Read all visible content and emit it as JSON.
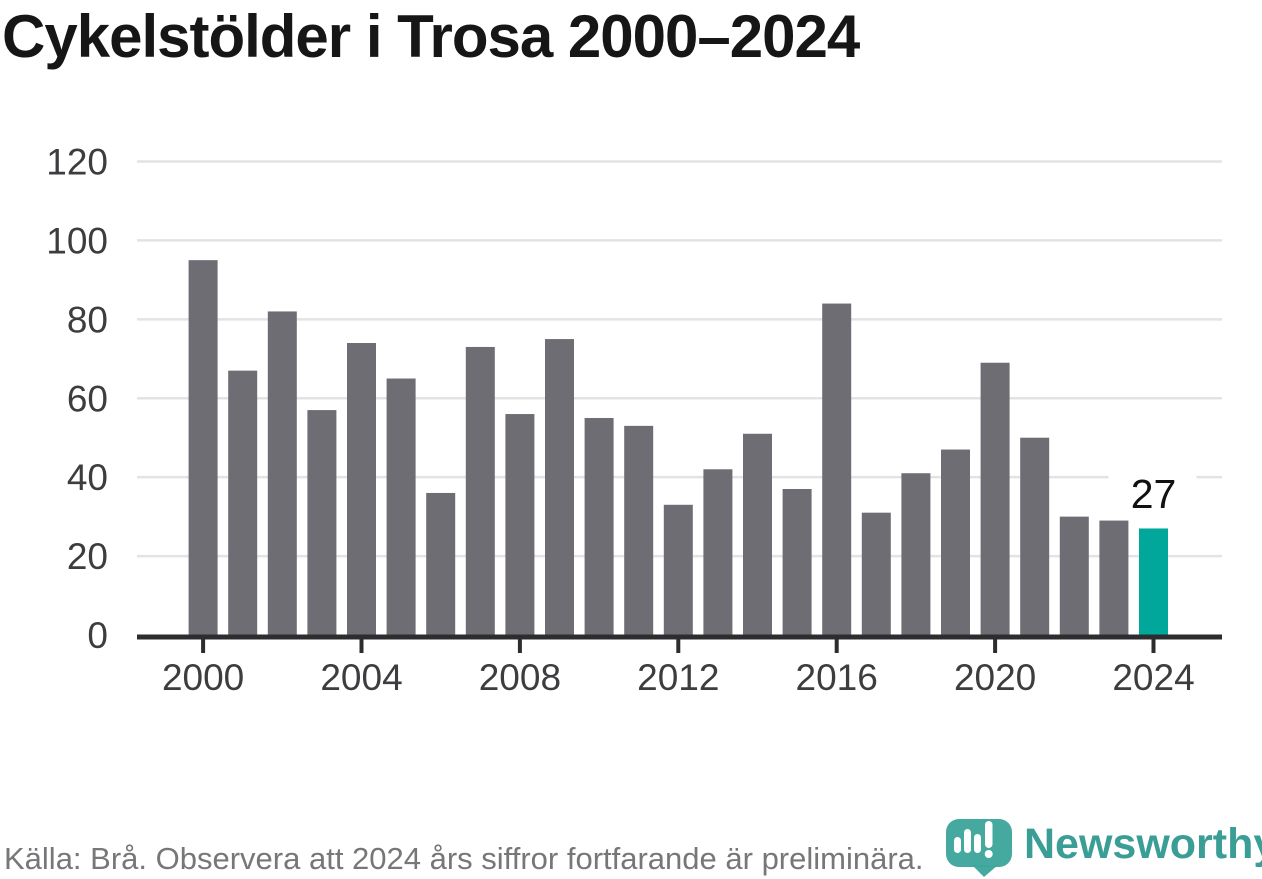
{
  "title": "Cykelstölder i Trosa 2000–2024",
  "chart_data": {
    "type": "bar",
    "title": "Cykelstölder i Trosa 2000–2024",
    "xlabel": "",
    "ylabel": "",
    "x": [
      2000,
      2001,
      2002,
      2003,
      2004,
      2005,
      2006,
      2007,
      2008,
      2009,
      2010,
      2011,
      2012,
      2013,
      2014,
      2015,
      2016,
      2017,
      2018,
      2019,
      2020,
      2021,
      2022,
      2023,
      2024
    ],
    "values": [
      95,
      67,
      82,
      57,
      74,
      65,
      36,
      73,
      56,
      75,
      55,
      53,
      33,
      42,
      51,
      37,
      84,
      31,
      41,
      47,
      69,
      50,
      30,
      29,
      27
    ],
    "ylim": [
      0,
      120
    ],
    "yticks": [
      0,
      20,
      40,
      60,
      80,
      100,
      120
    ],
    "xticks": [
      2000,
      2004,
      2008,
      2012,
      2016,
      2020,
      2024
    ],
    "grid": true,
    "legend": false,
    "bar_color": "#6e6d73",
    "highlight_year": 2024,
    "highlight_color": "#00a79a",
    "annotation": {
      "year": 2024,
      "label": "27"
    }
  },
  "footer": {
    "source_text": "Källa: Brå. Observera att 2024 års siffror fortfarande är preliminära.",
    "logo_text": "Newsworthy"
  },
  "icons": {
    "logo_mark": "newsworthy-bubble-barchart-icon"
  },
  "colors": {
    "bar": "#6e6d73",
    "highlight": "#00a79a",
    "axis": "#2d2d30",
    "gridline": "#e3e3e5",
    "tick_label": "#3d3d40",
    "annotation_text": "#111111",
    "source_text": "#77777a",
    "logo_teal": "#3fa69c",
    "logo_text_teal": "#3a9e97",
    "title_text": "#161616"
  }
}
